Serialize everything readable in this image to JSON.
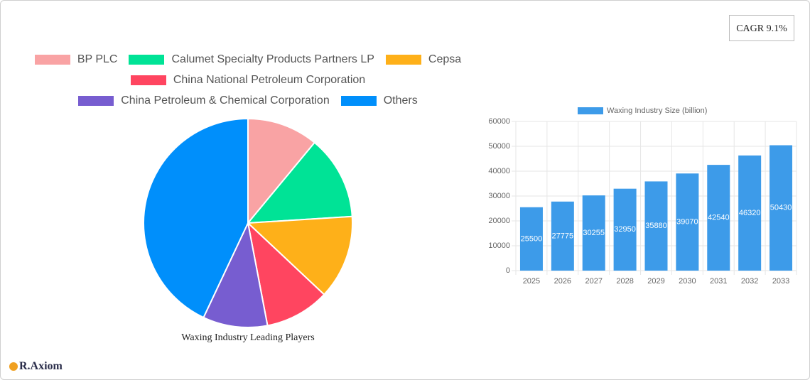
{
  "badge": "CAGR 9.1%",
  "logo": "R.Axiom",
  "chart_data": [
    {
      "type": "pie",
      "title": "Waxing Industry Leading Players",
      "categories": [
        "BP PLC",
        "Calumet Specialty Products Partners LP",
        "Cepsa",
        "China National Petroleum Corporation",
        "China Petroleum & Chemical Corporation",
        "Others"
      ],
      "values": [
        11,
        13,
        13,
        10,
        10,
        43
      ],
      "colors": [
        "#f9a3a4",
        "#00e396",
        "#feb019",
        "#ff4560",
        "#775dd0",
        "#008ffb"
      ]
    },
    {
      "type": "bar",
      "categories": [
        "2025",
        "2026",
        "2027",
        "2028",
        "2029",
        "2030",
        "2031",
        "2032",
        "2033"
      ],
      "series": [
        {
          "name": "Waxing Industry Size (billion)",
          "color": "#3d9be9",
          "values": [
            25500,
            27775,
            30255,
            32950,
            35880,
            39070,
            42540,
            46320,
            50430
          ]
        }
      ],
      "ylim": [
        0,
        60000
      ],
      "yticks": [
        0,
        10000,
        20000,
        30000,
        40000,
        50000,
        60000
      ],
      "grid": true
    }
  ]
}
